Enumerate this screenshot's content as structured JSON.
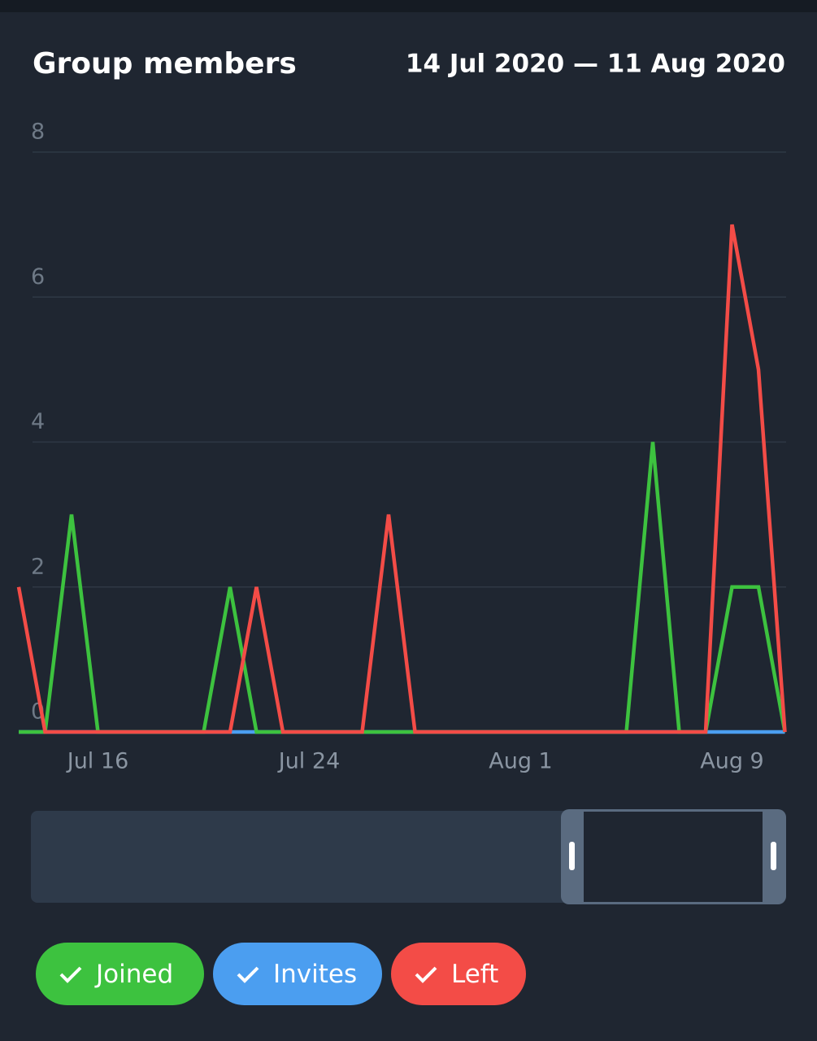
{
  "header": {
    "title": "Group members",
    "range": "14 Jul 2020 — 11 Aug 2020"
  },
  "chart_data": {
    "type": "line",
    "categories": [
      null,
      null,
      null,
      "Jul 16",
      null,
      null,
      null,
      null,
      null,
      null,
      null,
      "Jul 24",
      null,
      null,
      null,
      null,
      null,
      null,
      null,
      "Aug 1",
      null,
      null,
      null,
      null,
      null,
      null,
      null,
      "Aug 9",
      null,
      null
    ],
    "series": [
      {
        "name": "Invites",
        "color": "#4b9ef0",
        "values": [
          0,
          0,
          0,
          0,
          0,
          0,
          0,
          0,
          0,
          0,
          0,
          0,
          0,
          0,
          0,
          0,
          0,
          0,
          0,
          0,
          0,
          0,
          0,
          0,
          0,
          0,
          0,
          0,
          0,
          0
        ]
      },
      {
        "name": "Joined",
        "color": "#3dc23f",
        "values": [
          0,
          0,
          3,
          0,
          0,
          0,
          0,
          0,
          2,
          0,
          0,
          0,
          0,
          0,
          0,
          0,
          0,
          0,
          0,
          0,
          0,
          0,
          0,
          0,
          4,
          0,
          0,
          2,
          2,
          0
        ]
      },
      {
        "name": "Left",
        "color": "#f34c47",
        "values": [
          2,
          0,
          0,
          0,
          0,
          0,
          0,
          0,
          0,
          2,
          0,
          0,
          0,
          0,
          3,
          0,
          0,
          0,
          0,
          0,
          0,
          0,
          0,
          0,
          0,
          0,
          0,
          7,
          5,
          0
        ]
      }
    ],
    "legend_order": [
      "Joined",
      "Invites",
      "Left"
    ],
    "ylim": [
      0,
      8
    ],
    "yticks": [
      0,
      2,
      4,
      6,
      8
    ],
    "grid": true
  }
}
